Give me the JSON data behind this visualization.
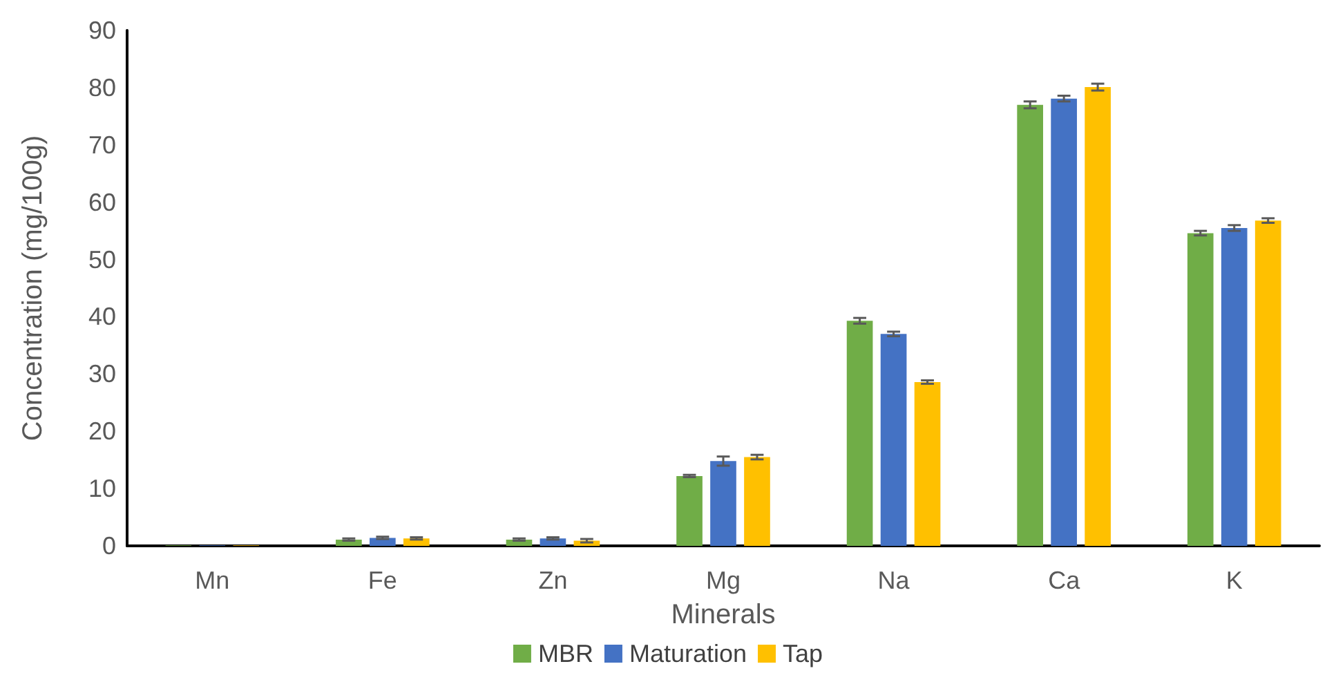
{
  "chart_data": {
    "type": "bar",
    "xlabel": "Minerals",
    "ylabel": "Concentration (mg/100g)",
    "categories": [
      "Mn",
      "Fe",
      "Zn",
      "Mg",
      "Na",
      "Ca",
      "K"
    ],
    "series": [
      {
        "name": "MBR",
        "color": "#70ad47",
        "values": [
          0.1,
          1.1,
          1.1,
          12.2,
          39.3,
          77.0,
          54.6
        ],
        "errors": [
          null,
          0.2,
          0.2,
          0.2,
          0.5,
          0.6,
          0.4
        ]
      },
      {
        "name": "Maturation",
        "color": "#4472c4",
        "values": [
          0.1,
          1.4,
          1.3,
          14.8,
          37.0,
          78.1,
          55.5
        ],
        "errors": [
          null,
          0.2,
          0.2,
          0.8,
          0.4,
          0.5,
          0.5
        ]
      },
      {
        "name": "Tap",
        "color": "#ffc000",
        "values": [
          0.1,
          1.3,
          0.9,
          15.5,
          28.6,
          80.1,
          56.8
        ],
        "errors": [
          null,
          0.2,
          0.3,
          0.4,
          0.3,
          0.6,
          0.4
        ]
      }
    ],
    "ylim": [
      0,
      90
    ],
    "yticks": [
      0,
      10,
      20,
      30,
      40,
      50,
      60,
      70,
      80,
      90
    ],
    "grid": false,
    "legend": "bottom"
  }
}
